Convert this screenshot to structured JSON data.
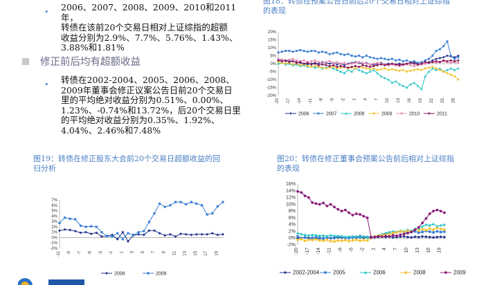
{
  "left": {
    "bullet1_lines": [
      "2006、2007、2008、2009、2010和2011年，",
      "转债在该前20个交易日相对上证综指的超额",
      "收益分别为2.9%、7.7%、5.76%、1.43%、",
      "3.88%和1.81%"
    ],
    "section_heading": "修正前后均有超额收益",
    "bullet2_lines": [
      "转债在2002-2004、2005、2006、2008、",
      "2009年董事会修正议案公告日前20个交易日",
      "里的平均绝对收益分别为0.51%、0.00%、",
      "1.23%、-0.74%和13.72%，后20个交易日里",
      "的平均绝对收益分别为0.35%、1.92%、",
      "4.04%、2.46%和7.48%"
    ]
  },
  "captions": {
    "fig18_lines": [
      "图18：转债在预案公告日前后20个交易日相对上证综指",
      "的表现"
    ],
    "fig19_lines": [
      "图19：转债在修正股东大会前20个交易日超额收益的回",
      "归分析"
    ],
    "fig20_lines": [
      "图20：转债在修正董事会预案公告前后相对上证综指",
      "的表现"
    ]
  },
  "colors": {
    "accent": "#4a7fc4",
    "s2006": "#1f2f8a",
    "s2007": "#3a7fd4",
    "s2008": "#22c3c3",
    "s2009_yellow": "#f2c230",
    "s2010": "#e890b8",
    "s2011": "#8a1a5a",
    "s2002_2004": "#1f2f8a",
    "s2005": "#3a7fd4",
    "s2009_purple": "#8a1a7a"
  },
  "chart_data": [
    {
      "type": "line",
      "yticks": [
        "20%",
        "15%",
        "10%",
        "5%",
        "0%",
        "-5%",
        "-10%",
        "-15%",
        "-20%"
      ],
      "ylim": [
        -20,
        20
      ],
      "xticks": [
        "-20",
        "-17",
        "-14",
        "-11",
        "-8",
        "-5",
        "-2",
        "1",
        "4",
        "7",
        "10",
        "13",
        "16",
        "19",
        "22",
        "25",
        "28"
      ],
      "x_range": [
        -20,
        29
      ],
      "legend": "bottom",
      "series": [
        {
          "name": "2006",
          "color": "#1f2f8a",
          "marker": "diamond",
          "values": [
            2,
            2.5,
            1.5,
            2,
            1.5,
            1,
            0.5,
            0,
            -0.5,
            0,
            0.5,
            0,
            1,
            0.5,
            0,
            0.5,
            -0.5,
            0,
            -1,
            0,
            0.5,
            1,
            0.5,
            0,
            0.5,
            -0.5,
            -1,
            0,
            0.5,
            -0.5,
            0,
            -0.5,
            -0.5,
            0,
            -0.5,
            0,
            0.5,
            1,
            0,
            -0.5,
            0,
            1,
            2,
            3,
            3.5,
            4,
            5,
            4.5,
            4,
            5
          ]
        },
        {
          "name": "2007",
          "color": "#3a7fd4",
          "marker": "square",
          "values": [
            7,
            7.5,
            8,
            8,
            7.5,
            8,
            8.5,
            8,
            7.5,
            8,
            8,
            7,
            7.5,
            7,
            6,
            6.5,
            7,
            6,
            5.5,
            6,
            5,
            4.5,
            5,
            4,
            5,
            4,
            3.5,
            3,
            3.5,
            3,
            2.5,
            3,
            2,
            2.5,
            1.5,
            2,
            1,
            1.5,
            0.5,
            1,
            2,
            3,
            5,
            8,
            9,
            11,
            14,
            5,
            3,
            4
          ]
        },
        {
          "name": "2008",
          "color": "#22c3c3",
          "marker": "triangle",
          "values": [
            0,
            0.5,
            -0.5,
            0,
            -1,
            -0.5,
            -1.5,
            -1,
            -2,
            -1.5,
            -2.5,
            -2,
            -3,
            -2.5,
            -2,
            -3,
            -4,
            -5,
            -6,
            -4,
            -5,
            -3,
            -4,
            -5,
            -6,
            -5,
            -4,
            -6,
            -8,
            -9,
            -10,
            -12,
            -11,
            -13,
            -14,
            -15,
            -13,
            -12,
            -14,
            -16,
            -8,
            -5,
            -3,
            -4,
            -3,
            -5,
            -4,
            -3,
            -4,
            -3
          ]
        },
        {
          "name": "2009",
          "color": "#f2c230",
          "marker": "circle",
          "values": [
            1,
            0.5,
            0,
            0.5,
            -0.5,
            0,
            -1,
            -0.5,
            -1.5,
            -2,
            -1.5,
            -2,
            -2.5,
            -3,
            -2.5,
            -2,
            -3,
            -2.5,
            -2,
            -3,
            -2.5,
            -3,
            -2,
            -2.5,
            -3,
            -3.5,
            -3,
            -4,
            -3.5,
            -3,
            -4,
            -3.5,
            -4,
            -4.5,
            -4,
            -5,
            -4.5,
            -4,
            -3.5,
            -4,
            -3,
            -2.5,
            -2,
            -3,
            -4,
            -5,
            -6,
            -7,
            -8,
            -10
          ]
        },
        {
          "name": "2010",
          "color": "#e890b8",
          "marker": "square",
          "values": [
            3,
            2.5,
            2,
            2.5,
            3,
            2,
            1.5,
            2,
            1,
            1.5,
            2,
            1,
            0.5,
            1,
            1.5,
            0.5,
            1,
            0,
            0.5,
            -0.5,
            0,
            0.5,
            1,
            0.5,
            0,
            -0.5,
            0,
            0.5,
            0,
            -0.5,
            -1,
            -0.5,
            -1,
            -1.5,
            -1,
            -0.5,
            -1,
            -1.5,
            -1,
            -0.5,
            0,
            0.5,
            1,
            0.5,
            1,
            1.5,
            1,
            0.5,
            1,
            0.5
          ]
        },
        {
          "name": "2011",
          "color": "#8a1a5a",
          "marker": "circle",
          "values": [
            2,
            1.5,
            2,
            1,
            1.5,
            0.5,
            1,
            0,
            0.5,
            -0.5,
            0,
            -1,
            -0.5,
            -1,
            -1.5,
            -1,
            -2,
            -1.5,
            -2,
            -2.5,
            -2,
            -1.5,
            -2,
            -1,
            -1.5,
            -2,
            -1.5,
            -1,
            -0.5,
            -1,
            -0.5,
            0,
            -0.5,
            -1,
            -0.5,
            0,
            0.5,
            0,
            -0.5,
            0,
            1,
            0.5,
            1,
            1.5,
            1,
            2,
            1.5,
            2,
            1.5,
            2
          ]
        }
      ]
    },
    {
      "type": "line",
      "yticks": [
        "7%",
        "6%",
        "5%",
        "4%",
        "3%",
        "2%",
        "1%",
        "0%",
        "-1%",
        "-2%"
      ],
      "ylim": [
        -2,
        7
      ],
      "xticks": [
        "-11",
        "-9",
        "-7",
        "-5",
        "-3",
        "-1",
        "1",
        "3",
        "5",
        "7",
        "9",
        "11",
        "13",
        "15",
        "17",
        "19"
      ],
      "x_range": [
        -11,
        20
      ],
      "legend": "bottom",
      "series": [
        {
          "name": "2008",
          "color": "#1f2f8a",
          "marker": "diamond",
          "values": [
            1.3,
            1.5,
            1.4,
            1.2,
            0.9,
            1.0,
            0.7,
            0.9,
            0.2,
            0.3,
            0.5,
            -0.3,
            1.0,
            -0.7,
            0.4,
            0.6,
            0.5,
            1.3,
            1.3,
            0.8,
            0.4,
            0.6,
            0.2,
            0.7,
            0.6,
            0.5,
            0.6,
            0.6,
            0.6,
            0.8,
            0.5,
            0.6
          ]
        },
        {
          "name": "2009",
          "color": "#3a7fd4",
          "marker": "square",
          "values": [
            2.7,
            3.7,
            3.5,
            3.4,
            2.2,
            2.0,
            2.1,
            2.0,
            1.0,
            0.3,
            0.2,
            0.8,
            -0.3,
            0.8,
            0.5,
            1.0,
            1.2,
            2.9,
            4.5,
            6.3,
            5.7,
            6.0,
            6.6,
            6.6,
            6.2,
            6.6,
            6.3,
            6.0,
            4.3,
            4.5,
            5.8,
            6.6
          ]
        }
      ]
    },
    {
      "type": "line",
      "yticks": [
        "16%",
        "14%",
        "12%",
        "10%",
        "8%",
        "6%",
        "4%",
        "2%",
        "0%",
        "-2%"
      ],
      "ylim": [
        -2,
        16
      ],
      "xticks": [
        "-20",
        "-17",
        "-14",
        "-11",
        "-8",
        "-5",
        "-2",
        "1",
        "4",
        "7",
        "10",
        "13",
        "16",
        "19"
      ],
      "x_range": [
        -20,
        20
      ],
      "legend": "bottom",
      "series": [
        {
          "name": "2002-2004",
          "color": "#1f2f8a",
          "marker": "diamond",
          "values": [
            0,
            0,
            0.2,
            0,
            0.1,
            0,
            -0.2,
            0,
            0.1,
            0,
            0,
            0.2,
            0.1,
            0,
            0.2,
            0.1,
            0.3,
            0.2,
            0.1,
            0.2,
            0.4,
            0.2,
            0.3,
            0.5,
            0.3,
            0.4,
            0.2,
            0.3,
            0.4,
            0.5,
            0.3,
            0.2,
            0.4,
            0.3,
            0.5,
            0.4,
            0.3,
            0.2,
            0.3,
            0.4,
            0.3
          ]
        },
        {
          "name": "2005",
          "color": "#3a7fd4",
          "marker": "square",
          "values": [
            0.5,
            0,
            0.2,
            -0.3,
            0,
            0.4,
            0.1,
            -0.2,
            0.3,
            0,
            0.2,
            0.5,
            0.3,
            0.1,
            0,
            0.4,
            0.2,
            0.6,
            0.4,
            0.3,
            0,
            0.5,
            0.7,
            1.0,
            1.2,
            1.5,
            1.3,
            1.8,
            2.0,
            1.7,
            1.5,
            1.8,
            2.0,
            1.6,
            1.8,
            2.1,
            1.9,
            1.7,
            2.0,
            1.8,
            1.9
          ]
        },
        {
          "name": "2006",
          "color": "#22c3c3",
          "marker": "triangle",
          "values": [
            1.5,
            1.2,
            1.0,
            0.8,
            1.0,
            0.9,
            0.7,
            0.8,
            0.6,
            0.9,
            0.7,
            0.5,
            0.6,
            0.4,
            0.5,
            0.3,
            0.6,
            0.4,
            0.5,
            0.2,
            0.1,
            0.3,
            0.8,
            1.2,
            1.5,
            1.8,
            2.0,
            1.8,
            2.2,
            2.0,
            2.5,
            2.2,
            2.8,
            3.0,
            3.5,
            4.0,
            3.8,
            4.2,
            3.5,
            3.8,
            4.0
          ]
        },
        {
          "name": "2008",
          "color": "#f2c230",
          "marker": "circle",
          "values": [
            -0.5,
            -0.3,
            -0.8,
            -0.5,
            -0.6,
            -0.4,
            -0.7,
            -0.8,
            -0.5,
            -0.9,
            -1.0,
            -0.7,
            -0.8,
            -0.6,
            -0.9,
            -0.7,
            -0.5,
            -0.8,
            -0.6,
            -0.7,
            0,
            0.5,
            0.7,
            0.9,
            1.0,
            1.2,
            1.5,
            1.7,
            2.0,
            1.8,
            2.2,
            2.0,
            2.5,
            2.3,
            2.6,
            2.4,
            2.8,
            2.5,
            3.0,
            2.7,
            2.5
          ]
        },
        {
          "name": "2009",
          "color": "#8a1a7a",
          "marker": "circle",
          "values": [
            13.8,
            13.5,
            12.5,
            12.0,
            10.5,
            10.2,
            10.0,
            10.4,
            9.5,
            10.0,
            9.2,
            8.5,
            8.0,
            8.3,
            7.5,
            6.8,
            7.2,
            7.0,
            6.5,
            6.0,
            0.2,
            0.3,
            0.5,
            0.4,
            0.6,
            0.5,
            0.8,
            0.7,
            1.0,
            1.2,
            1.5,
            1.8,
            2.5,
            3.2,
            4.5,
            5.8,
            7.2,
            8.0,
            8.3,
            8.0,
            7.5
          ]
        }
      ]
    }
  ]
}
